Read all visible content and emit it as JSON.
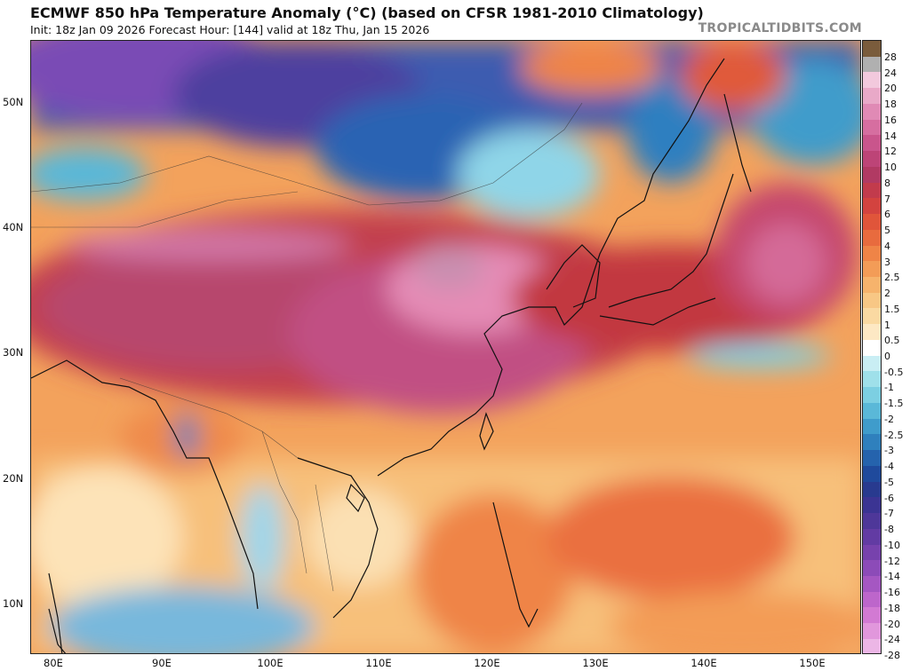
{
  "header": {
    "title": "ECMWF 850 hPa Temperature Anomaly (°C) (based on CFSR 1981-2010 Climatology)",
    "subtitle": "Init: 18z Jan 09 2026   Forecast Hour: [144]   valid at 18z Thu, Jan 15 2026",
    "brand": "TROPICALTIDBITS.COM"
  },
  "map": {
    "lat_labels": [
      "50N",
      "40N",
      "30N",
      "20N",
      "10N"
    ],
    "lon_labels": [
      "80E",
      "90E",
      "100E",
      "110E",
      "120E",
      "130E",
      "140E",
      "150E"
    ]
  },
  "colorbar": {
    "labels": [
      "28",
      "24",
      "20",
      "18",
      "16",
      "14",
      "12",
      "10",
      "8",
      "7",
      "6",
      "5",
      "4",
      "3",
      "2.5",
      "2",
      "1.5",
      "1",
      "0.5",
      "0",
      "-0.5",
      "-1",
      "-1.5",
      "-2",
      "-2.5",
      "-3",
      "-4",
      "-5",
      "-6",
      "-7",
      "-8",
      "-10",
      "-12",
      "-14",
      "-16",
      "-18",
      "-20",
      "-24",
      "-28"
    ],
    "colors": [
      "#7a5c3c",
      "#b0b0b0",
      "#f2c9dd",
      "#e9a9c8",
      "#e08ab5",
      "#d66ea0",
      "#c9558c",
      "#bd4477",
      "#b13a63",
      "#c23b4c",
      "#d3433f",
      "#e0553a",
      "#e86b3e",
      "#ef8447",
      "#f39c57",
      "#f6b36c",
      "#f8c785",
      "#fad9a2",
      "#fde8c4",
      "#ffffff",
      "#c9eef4",
      "#9fe0ea",
      "#7ccfe2",
      "#5ab8d8",
      "#3f9ccb",
      "#2f80bd",
      "#2563ad",
      "#1f4a9c",
      "#283a8f",
      "#3b3493",
      "#4e3799",
      "#623ba3",
      "#7742ad",
      "#8c4bb8",
      "#a557c2",
      "#bd66cb",
      "#d27ad3",
      "#e197dc",
      "#ecb6e6"
    ]
  }
}
